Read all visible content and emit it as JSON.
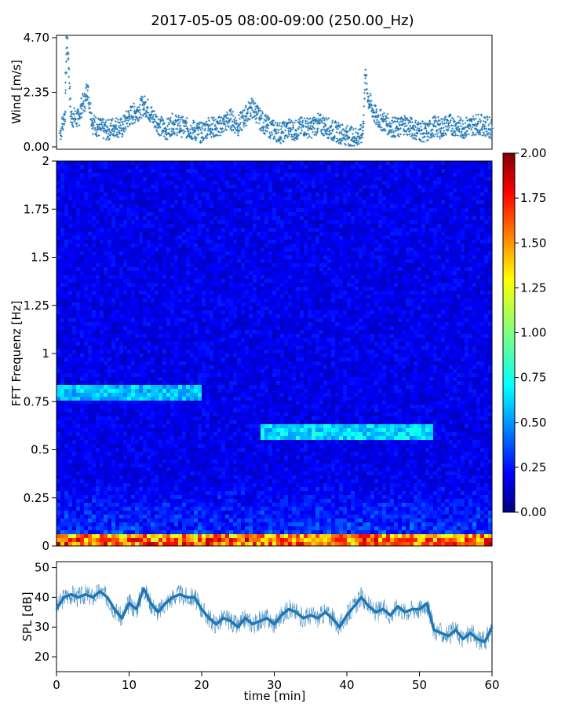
{
  "title": "2017-05-05 08:00-09:00 (250.00_Hz)",
  "colors": {
    "series": "#1f77b4",
    "axis": "#000000"
  },
  "chart_data": [
    {
      "type": "scatter",
      "panel": "wind",
      "ylabel": "Wind [m/s]",
      "xlim": [
        0,
        60
      ],
      "ylim": [
        0,
        4.7
      ],
      "yticks": [
        0.0,
        2.35,
        4.7
      ],
      "ytick_labels": [
        "0.00",
        "2.35",
        "4.70"
      ],
      "marker": "+",
      "x": [
        0.5,
        1,
        1.2,
        1.3,
        1.4,
        1.6,
        2,
        3,
        3.5,
        4,
        4.2,
        5,
        6,
        7,
        8,
        9,
        10,
        11,
        12,
        12.5,
        13,
        14,
        15,
        16,
        17,
        18,
        19,
        20,
        21,
        22,
        23,
        24,
        25,
        26,
        26.8,
        27.5,
        28,
        29,
        30,
        31,
        32,
        33,
        34,
        35,
        36,
        37,
        38,
        39,
        40,
        41,
        42,
        42.3,
        42.5,
        43,
        44,
        45,
        46,
        47,
        48,
        49,
        50,
        51,
        52,
        53,
        54,
        55,
        56,
        57,
        58,
        59,
        60
      ],
      "y": [
        0.6,
        1.2,
        1.5,
        3.2,
        4.7,
        4.0,
        1.3,
        1.2,
        1.8,
        2.0,
        2.6,
        1.0,
        0.8,
        0.7,
        0.9,
        0.8,
        1.3,
        1.5,
        1.8,
        1.7,
        1.4,
        1.0,
        0.7,
        1.0,
        0.9,
        0.8,
        0.7,
        0.6,
        0.9,
        0.8,
        1.0,
        1.2,
        0.9,
        1.3,
        1.7,
        1.5,
        1.2,
        0.9,
        0.7,
        0.6,
        0.8,
        0.7,
        0.9,
        0.8,
        1.0,
        0.9,
        0.7,
        0.6,
        0.5,
        0.4,
        0.5,
        1.0,
        3.1,
        2.0,
        1.3,
        1.1,
        0.9,
        0.8,
        1.0,
        0.8,
        0.7,
        0.6,
        0.9,
        0.8,
        1.0,
        0.9,
        0.8,
        0.9,
        1.0,
        0.9,
        0.8
      ]
    },
    {
      "type": "heatmap",
      "panel": "spectrogram",
      "ylabel": "FFT Frequenz [Hz]",
      "xlim": [
        0,
        60
      ],
      "ylim": [
        0,
        2
      ],
      "yticks": [
        0,
        0.25,
        0.5,
        0.75,
        1,
        1.25,
        1.5,
        1.75,
        2
      ],
      "colorbar": {
        "range": [
          0,
          2
        ],
        "ticks": [
          "0.00",
          "0.25",
          "0.50",
          "0.75",
          "1.00",
          "1.25",
          "1.50",
          "1.75",
          "2.00"
        ],
        "colormap": "jet"
      },
      "features": [
        {
          "x": [
            0,
            20
          ],
          "freq": 0.8,
          "value": 0.7
        },
        {
          "x": [
            28,
            52
          ],
          "freq": 0.6,
          "value": 0.75
        },
        {
          "x": [
            0,
            60
          ],
          "freq": 0.02,
          "value": 1.6
        }
      ]
    },
    {
      "type": "line",
      "panel": "spl",
      "ylabel": "SPL [dB]",
      "xlabel": "time [min]",
      "xlim": [
        0,
        60
      ],
      "ylim": [
        15,
        52
      ],
      "yticks": [
        20,
        30,
        40,
        50
      ],
      "xticks": [
        0,
        10,
        20,
        30,
        40,
        50,
        60
      ],
      "x": [
        0,
        1,
        2,
        3,
        4,
        5,
        6,
        7,
        8,
        9,
        10,
        11,
        12,
        13,
        14,
        15,
        16,
        17,
        18,
        19,
        20,
        21,
        22,
        23,
        24,
        25,
        26,
        27,
        28,
        29,
        30,
        31,
        32,
        33,
        34,
        35,
        36,
        37,
        38,
        39,
        40,
        41,
        42,
        43,
        44,
        45,
        46,
        47,
        48,
        49,
        50,
        51,
        52,
        53,
        54,
        55,
        56,
        57,
        58,
        59,
        60
      ],
      "y": [
        36,
        40,
        41,
        40,
        41,
        40,
        42,
        40,
        36,
        33,
        38,
        36,
        43,
        38,
        35,
        38,
        40,
        41,
        40,
        40,
        36,
        33,
        31,
        33,
        32,
        30,
        33,
        31,
        32,
        33,
        31,
        34,
        36,
        35,
        33,
        34,
        33,
        35,
        33,
        30,
        34,
        37,
        40,
        37,
        35,
        36,
        34,
        37,
        35,
        36,
        36,
        38,
        29,
        28,
        27,
        29,
        26,
        28,
        26,
        25,
        30
      ]
    }
  ]
}
